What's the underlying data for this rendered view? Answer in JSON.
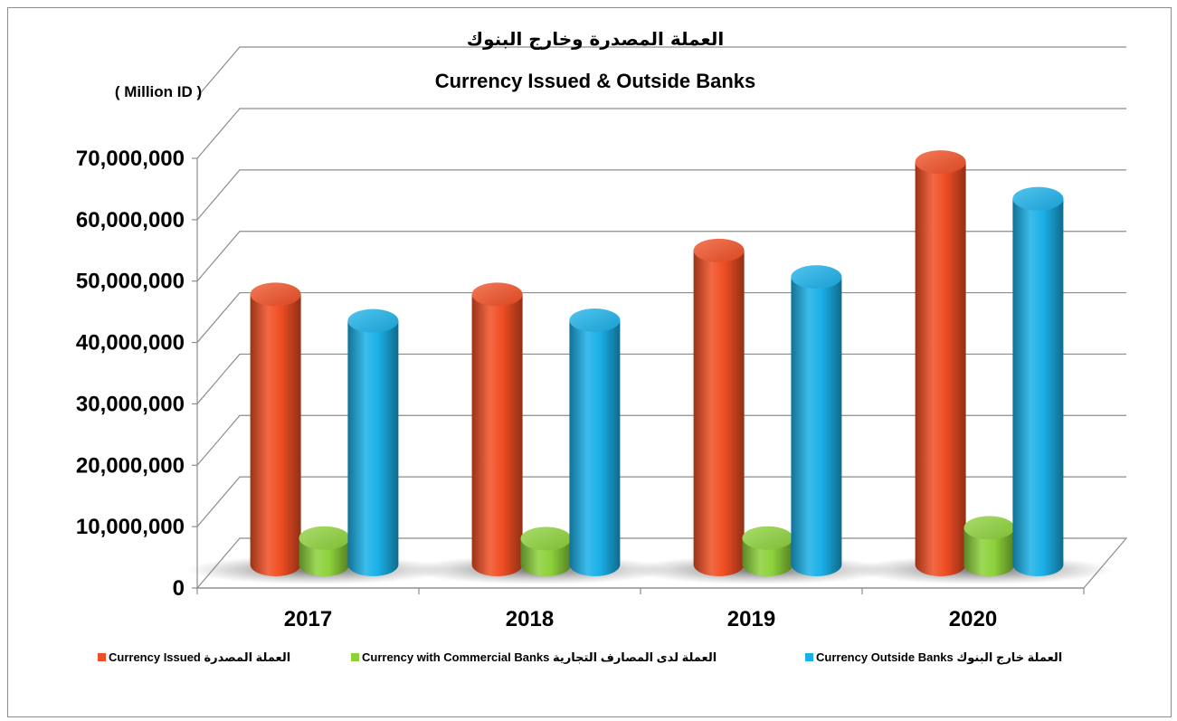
{
  "chart_data": {
    "type": "bar",
    "title": "العملة المصدرة وخارج البنوك",
    "subtitle": "Currency Issued & Outside Banks",
    "unit_label": "( Million ID )",
    "categories": [
      "2017",
      "2018",
      "2019",
      "2020"
    ],
    "series": [
      {
        "name": "Currency Issued العملة المصدرة",
        "color": "#f04e23",
        "values": [
          44900000,
          44900000,
          52200000,
          66900000
        ]
      },
      {
        "name": "Currency with Commercial Banks العملة لدى المصارف التجارية",
        "color": "#8cd13a",
        "values": [
          4400000,
          4300000,
          4400000,
          6100000
        ]
      },
      {
        "name": "Currency Outside Banks العملة خارج البنوك",
        "color": "#1ab0e8",
        "values": [
          40500000,
          40600000,
          47800000,
          60800000
        ]
      }
    ],
    "y_ticks": [
      "0",
      "10,000,000",
      "20,000,000",
      "30,000,000",
      "40,000,000",
      "50,000,000",
      "60,000,000",
      "70,000,000"
    ],
    "ylim": [
      0,
      70000000
    ],
    "grid": true,
    "legend_position": "bottom"
  }
}
